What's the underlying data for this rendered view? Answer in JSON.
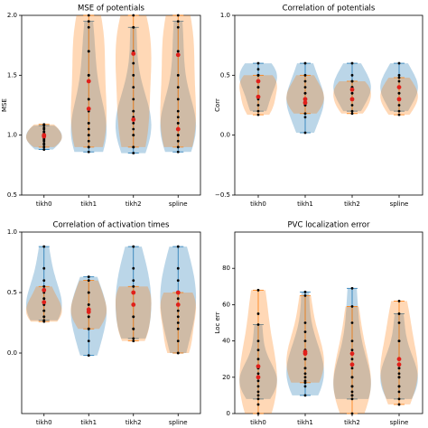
{
  "chart_data": [
    {
      "type": "violin",
      "title": "MSE of potentials",
      "ylabel": "MSE",
      "categories": [
        "tikh0",
        "tikh1",
        "tikh2",
        "spline"
      ],
      "ylim": [
        0.5,
        2.0
      ],
      "yticks": [
        0.5,
        {
          "value": 1,
          "label": "1.0"
        },
        1.5,
        {
          "value": 2,
          "label": "2.0"
        }
      ],
      "series": [
        {
          "color": "#1f77b4",
          "values": [
            [
              0.88,
              0.92,
              0.95,
              0.97,
              1.0,
              1.02,
              1.05,
              1.08
            ],
            [
              0.86,
              0.9,
              0.95,
              1.0,
              1.05,
              1.1,
              1.2,
              1.3,
              1.5,
              1.7,
              1.95
            ],
            [
              0.85,
              0.9,
              1.0,
              1.05,
              1.1,
              1.15,
              1.2,
              1.3,
              1.5,
              1.9
            ],
            [
              0.86,
              0.95,
              1.0,
              1.05,
              1.1,
              1.15,
              1.2,
              1.4,
              1.7,
              1.95
            ]
          ],
          "means": [
            1.0,
            1.22,
            1.13,
            1.05
          ]
        },
        {
          "color": "#ff7f0e",
          "values": [
            [
              0.9,
              0.93,
              0.96,
              0.98,
              1.0,
              1.03,
              1.06,
              1.09
            ],
            [
              0.9,
              1.0,
              1.1,
              1.3,
              1.5,
              1.7,
              1.9,
              2.0
            ],
            [
              0.9,
              1.0,
              1.2,
              1.4,
              1.6,
              1.7,
              1.9,
              2.0
            ],
            [
              0.9,
              1.0,
              1.1,
              1.3,
              1.5,
              1.7,
              1.9,
              2.0
            ]
          ],
          "means": [
            0.99,
            1.45,
            1.68,
            1.67
          ]
        }
      ]
    },
    {
      "type": "violin",
      "title": "Correlation of potentials",
      "ylabel": "Corr",
      "categories": [
        "tikh0",
        "tikh1",
        "tikh2",
        "spline"
      ],
      "ylim": [
        -0.5,
        1.0
      ],
      "yticks": [
        {
          "value": -0.5,
          "label": "−0.5"
        },
        {
          "value": 0,
          "label": "0.0"
        },
        0.5,
        {
          "value": 1,
          "label": "1.0"
        }
      ],
      "series": [
        {
          "color": "#1f77b4",
          "values": [
            [
              0.2,
              0.3,
              0.4,
              0.45,
              0.5,
              0.55,
              0.6
            ],
            [
              0.02,
              0.15,
              0.25,
              0.3,
              0.35,
              0.45,
              0.6
            ],
            [
              0.2,
              0.3,
              0.35,
              0.4,
              0.45,
              0.5,
              0.6
            ],
            [
              0.2,
              0.3,
              0.35,
              0.4,
              0.45,
              0.5,
              0.6
            ]
          ],
          "means": [
            0.45,
            0.3,
            0.38,
            0.4
          ]
        },
        {
          "color": "#ff7f0e",
          "values": [
            [
              0.17,
              0.25,
              0.32,
              0.4,
              0.45,
              0.5
            ],
            [
              0.18,
              0.25,
              0.3,
              0.35,
              0.4,
              0.5
            ],
            [
              0.18,
              0.25,
              0.3,
              0.35,
              0.4,
              0.45
            ],
            [
              0.17,
              0.25,
              0.3,
              0.35,
              0.4,
              0.48
            ]
          ],
          "means": [
            0.32,
            0.27,
            0.3,
            0.3
          ]
        }
      ]
    },
    {
      "type": "violin",
      "title": "Correlation of activation times",
      "categories": [
        "tikh0",
        "tikh1",
        "tikh2",
        "spline"
      ],
      "ylim": [
        -0.5,
        1.0
      ],
      "yticks": [
        {
          "value": 0,
          "label": "0.0"
        },
        0.5,
        {
          "value": 1,
          "label": "1.0"
        }
      ],
      "series": [
        {
          "color": "#1f77b4",
          "values": [
            [
              0.27,
              0.3,
              0.35,
              0.4,
              0.45,
              0.5,
              0.6,
              0.7,
              0.88
            ],
            [
              -0.02,
              0.1,
              0.2,
              0.3,
              0.35,
              0.4,
              0.5,
              0.63
            ],
            [
              0.12,
              0.2,
              0.3,
              0.4,
              0.5,
              0.6,
              0.7,
              0.88
            ],
            [
              0.0,
              0.2,
              0.3,
              0.4,
              0.5,
              0.6,
              0.7,
              0.88
            ]
          ],
          "means": [
            0.52,
            0.34,
            0.5,
            0.5
          ]
        },
        {
          "color": "#ff7f0e",
          "values": [
            [
              0.26,
              0.3,
              0.35,
              0.4,
              0.45,
              0.55
            ],
            [
              0.2,
              0.3,
              0.35,
              0.4,
              0.5,
              0.6
            ],
            [
              0.1,
              0.2,
              0.3,
              0.4,
              0.5,
              0.55
            ],
            [
              0.0,
              0.1,
              0.25,
              0.35,
              0.45,
              0.5
            ]
          ],
          "means": [
            0.42,
            0.36,
            0.4,
            0.4
          ]
        }
      ]
    },
    {
      "type": "violin",
      "title": "PVC localization error",
      "ylabel": "Loc err",
      "categories": [
        "tikh0",
        "tikh1",
        "tikh2",
        "spline"
      ],
      "ylim": [
        0,
        100
      ],
      "yticks": [
        0,
        20,
        40,
        60,
        80
      ],
      "series": [
        {
          "color": "#1f77b4",
          "values": [
            [
              8,
              12,
              15,
              18,
              20,
              22,
              25,
              35,
              49
            ],
            [
              10,
              15,
              18,
              22,
              25,
              30,
              35,
              45,
              67
            ],
            [
              8,
              10,
              12,
              15,
              20,
              25,
              35,
              50,
              69
            ],
            [
              8,
              12,
              15,
              20,
              22,
              25,
              30,
              40,
              55
            ]
          ],
          "means": [
            26,
            34,
            33,
            30
          ]
        },
        {
          "color": "#ff7f0e",
          "values": [
            [
              0,
              5,
              10,
              20,
              25,
              30,
              40,
              55,
              68
            ],
            [
              17,
              20,
              25,
              30,
              35,
              40,
              50,
              65
            ],
            [
              0,
              10,
              15,
              20,
              30,
              40,
              59
            ],
            [
              5,
              15,
              20,
              25,
              30,
              40,
              50,
              62
            ]
          ],
          "means": [
            20,
            33,
            27,
            27
          ]
        }
      ]
    }
  ]
}
